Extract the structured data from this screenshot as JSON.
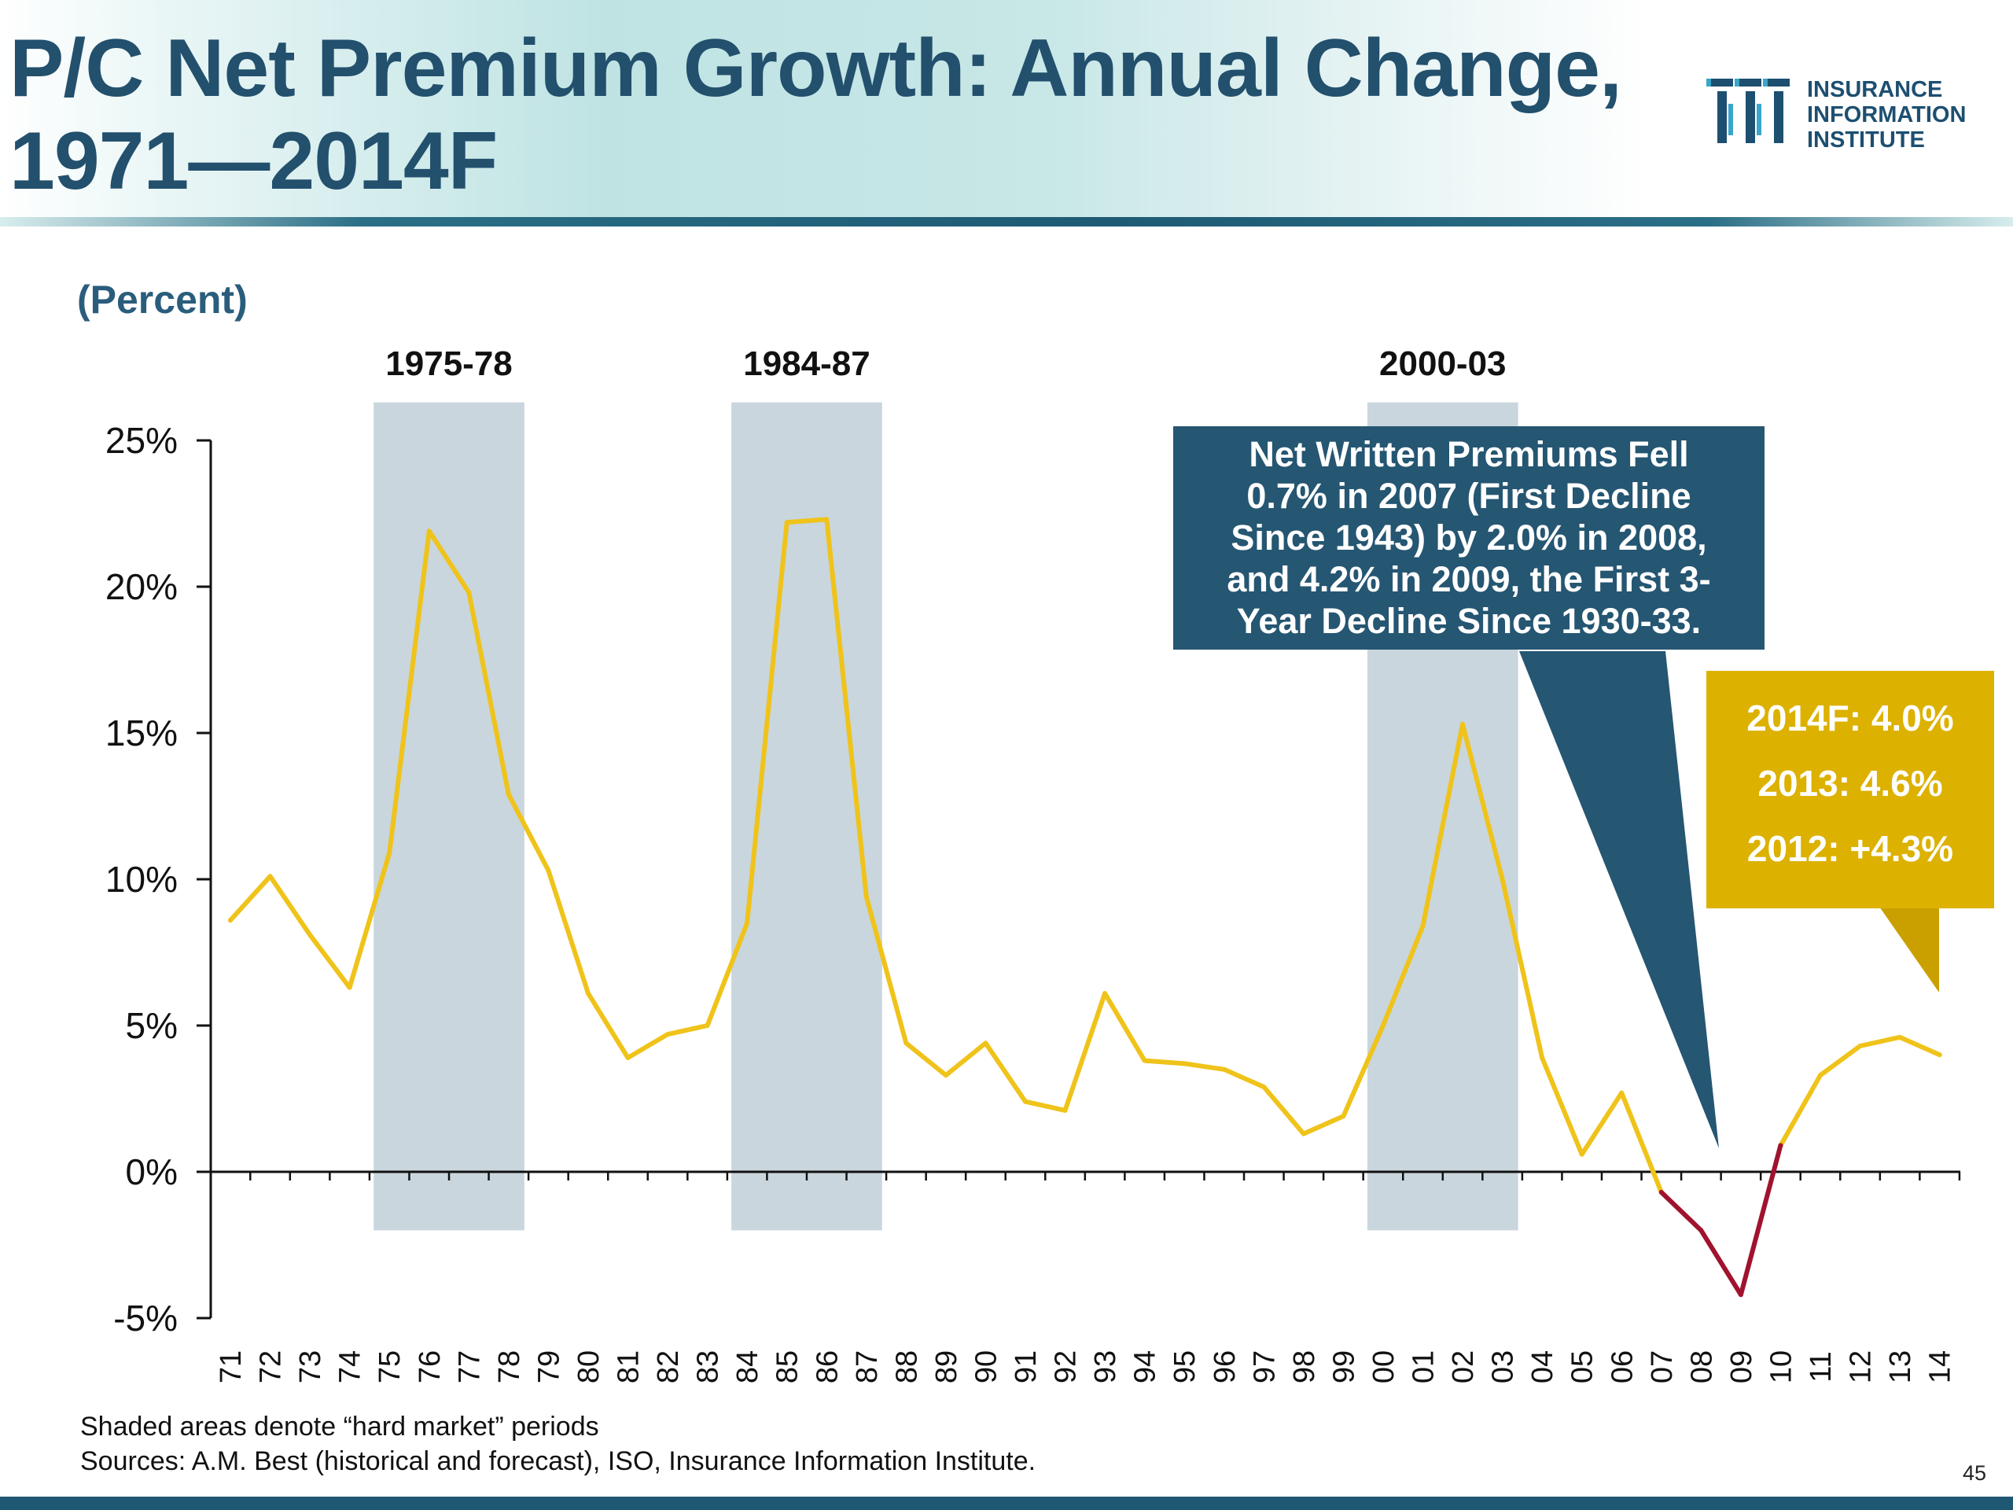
{
  "header": {
    "title_line1": "P/C Net Premium Growth: Annual Change,",
    "title_line2": "1971—2014F",
    "logo_lines": [
      "INSURANCE",
      "INFORMATION",
      "INSTITUTE"
    ],
    "logo_icon": "iii-logo-icon"
  },
  "chart_data": {
    "type": "line",
    "ylabel": "(Percent)",
    "ylim": [
      -5,
      25
    ],
    "y_ticks": [
      25,
      20,
      15,
      10,
      5,
      0,
      -5
    ],
    "y_tick_labels": [
      "25%",
      "20%",
      "15%",
      "10%",
      "5%",
      "0%",
      "-5%"
    ],
    "x_labels": [
      "71",
      "72",
      "73",
      "74",
      "75",
      "76",
      "77",
      "78",
      "79",
      "80",
      "81",
      "82",
      "83",
      "84",
      "85",
      "86",
      "87",
      "88",
      "89",
      "90",
      "91",
      "92",
      "93",
      "94",
      "95",
      "96",
      "97",
      "98",
      "99",
      "00",
      "01",
      "02",
      "03",
      "04",
      "05",
      "06",
      "07",
      "08",
      "09",
      "10",
      "11",
      "12",
      "13",
      "14"
    ],
    "values": [
      8.6,
      10.1,
      8.1,
      6.3,
      10.9,
      21.9,
      19.8,
      12.9,
      10.3,
      6.1,
      3.9,
      4.7,
      5.0,
      8.5,
      22.2,
      22.3,
      9.4,
      4.4,
      3.3,
      4.4,
      2.4,
      2.1,
      6.1,
      3.8,
      3.7,
      3.5,
      2.9,
      1.3,
      1.9,
      5.0,
      8.4,
      15.3,
      10.0,
      3.9,
      0.6,
      2.7,
      -0.7,
      -2.0,
      -4.2,
      0.9,
      3.3,
      4.3,
      4.6,
      4.0
    ],
    "series_color": "#efc31a",
    "decline_color": "#a0132e",
    "decline_range": [
      "07",
      "10"
    ],
    "shaded_periods": [
      {
        "label": "1975-78",
        "start": "75",
        "end": "78"
      },
      {
        "label": "1984-87",
        "start": "84",
        "end": "87"
      },
      {
        "label": "2000-03",
        "start": "00",
        "end": "03"
      }
    ],
    "shade_color": "#c9d6dd",
    "shade_ylim": [
      -2,
      26.3
    ],
    "grid": false
  },
  "callouts": {
    "blue": {
      "lines": [
        "Net Written Premiums Fell",
        "0.7% in 2007 (First Decline",
        "Since 1943) by 2.0% in 2008,",
        "and 4.2% in 2009, the First 3-",
        "Year Decline Since 1930-33."
      ],
      "color": "#255672"
    },
    "gold": {
      "lines": [
        "2014F: 4.0%",
        "2013: 4.6%",
        "2012: +4.3%"
      ],
      "color": "#dcb100"
    }
  },
  "footnote": {
    "line1": "Shaded areas denote “hard market” periods",
    "line2": "Sources:  A.M. Best (historical and forecast), ISO, Insurance Information Institute."
  },
  "page_number": "45"
}
